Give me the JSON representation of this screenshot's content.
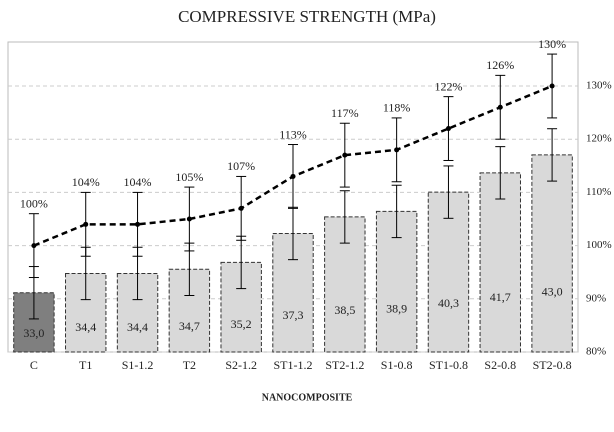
{
  "chart_data": {
    "type": "bar-line",
    "title": "COMPRESSIVE STRENGTH (MPa)",
    "x_label": "NANOCOMPOSITE",
    "categories": [
      "C",
      "T1",
      "S1-1.2",
      "T2",
      "S2-1.2",
      "ST1-1.2",
      "ST2-1.2",
      "S1-0.8",
      "ST1-0.8",
      "S2-0.8",
      "ST2-0.8"
    ],
    "ylim": [
      28.7,
      48.0
    ],
    "y2lim": [
      80,
      130
    ],
    "y2ticks": [
      {
        "value": 80,
        "label": "80%"
      },
      {
        "value": 90,
        "label": "90%"
      },
      {
        "value": 100,
        "label": "100%"
      },
      {
        "value": 110,
        "label": "110%"
      },
      {
        "value": 120,
        "label": "120%"
      },
      {
        "value": 130,
        "label": "130%"
      }
    ],
    "grid": true,
    "series": [
      {
        "type": "bar",
        "values": [
          33.0,
          34.4,
          34.4,
          34.7,
          35.2,
          37.3,
          38.5,
          38.9,
          40.3,
          41.7,
          43.0
        ],
        "value_labels": [
          "33,0",
          "34,4",
          "34,4",
          "34,7",
          "35,2",
          "37,3",
          "38,5",
          "38,9",
          "40,3",
          "41,7",
          "43,0"
        ],
        "errors": [
          1.9,
          1.9,
          1.9,
          1.9,
          1.9,
          1.9,
          1.9,
          1.9,
          1.9,
          1.9,
          1.9
        ],
        "colors": [
          "#7f7f7f",
          "#d9d9d9",
          "#d9d9d9",
          "#d9d9d9",
          "#d9d9d9",
          "#d9d9d9",
          "#d9d9d9",
          "#d9d9d9",
          "#d9d9d9",
          "#d9d9d9",
          "#d9d9d9"
        ]
      },
      {
        "type": "line",
        "axis": "y2",
        "color": "#000000",
        "values": [
          100,
          104,
          104,
          105,
          107,
          113,
          117,
          118,
          122,
          126,
          130
        ],
        "value_labels": [
          "100%",
          "104%",
          "104%",
          "105%",
          "107%",
          "113%",
          "117%",
          "118%",
          "122%",
          "126%",
          "130%"
        ],
        "errors": [
          6,
          6,
          6,
          6,
          6,
          6,
          6,
          6,
          6,
          6,
          6
        ]
      }
    ]
  }
}
